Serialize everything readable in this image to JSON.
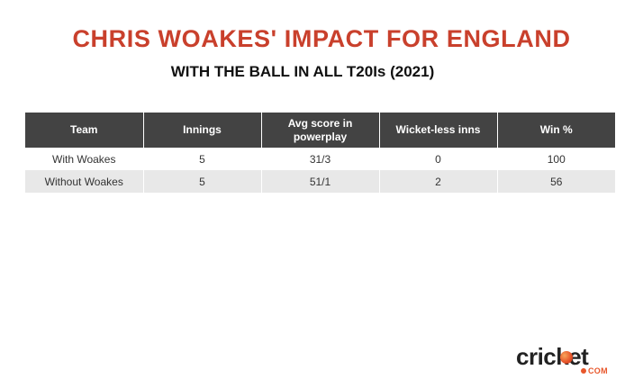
{
  "header": {
    "title": "CHRIS WOAKES' IMPACT FOR ENGLAND",
    "subtitle": "WITH THE BALL IN ALL T20Is (2021)"
  },
  "table": {
    "columns": [
      "Team",
      "Innings",
      "Avg score in powerplay",
      "Wicket-less inns",
      "Win %"
    ],
    "rows": [
      [
        "With Woakes",
        "5",
        "31/3",
        "0",
        "100"
      ],
      [
        "Without Woakes",
        "5",
        "51/1",
        "2",
        "56"
      ]
    ]
  },
  "logo": {
    "text": "cricket.com",
    "colors": {
      "word": "#222222",
      "accent": "#e8572b"
    }
  },
  "colors": {
    "title": "#c9402c",
    "header_bg": "#434343",
    "row_alt_bg": "#e8e8e8"
  }
}
